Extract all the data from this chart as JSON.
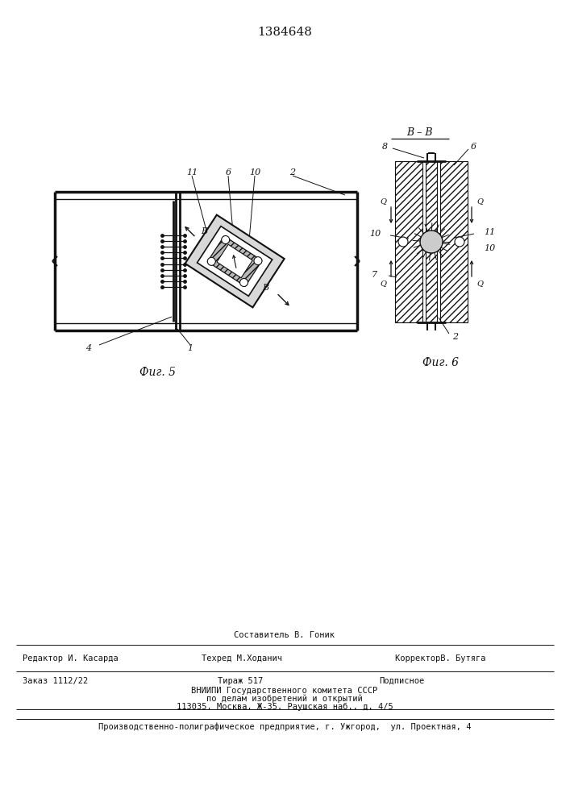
{
  "title": "1384648",
  "line_color": "#111111",
  "fig5_label": "Фиг. 5",
  "fig6_label": "Фиг. 6",
  "section_label": "В – В",
  "footer": {
    "sestavitel": "Составитель В. Гоник",
    "redaktor": "Редактор И. Касарда",
    "tehred": "Техред М.Ходанич",
    "korrektor": "КорректорВ. Бутяга",
    "zakaz": "Заказ 1112/22",
    "tirazh": "Тираж 517",
    "podpisnoe": "Подписное",
    "vniip1": "ВНИИПИ Государственного комитета СССР",
    "vniip2": "по делам изобретений и открытий",
    "vniip3": "113035, Москва, Ж-35, Раушская наб., д. 4/5",
    "last": "Производственно-полиграфическое предприятие, г. Ужгород,  ул. Проектная, 4"
  }
}
